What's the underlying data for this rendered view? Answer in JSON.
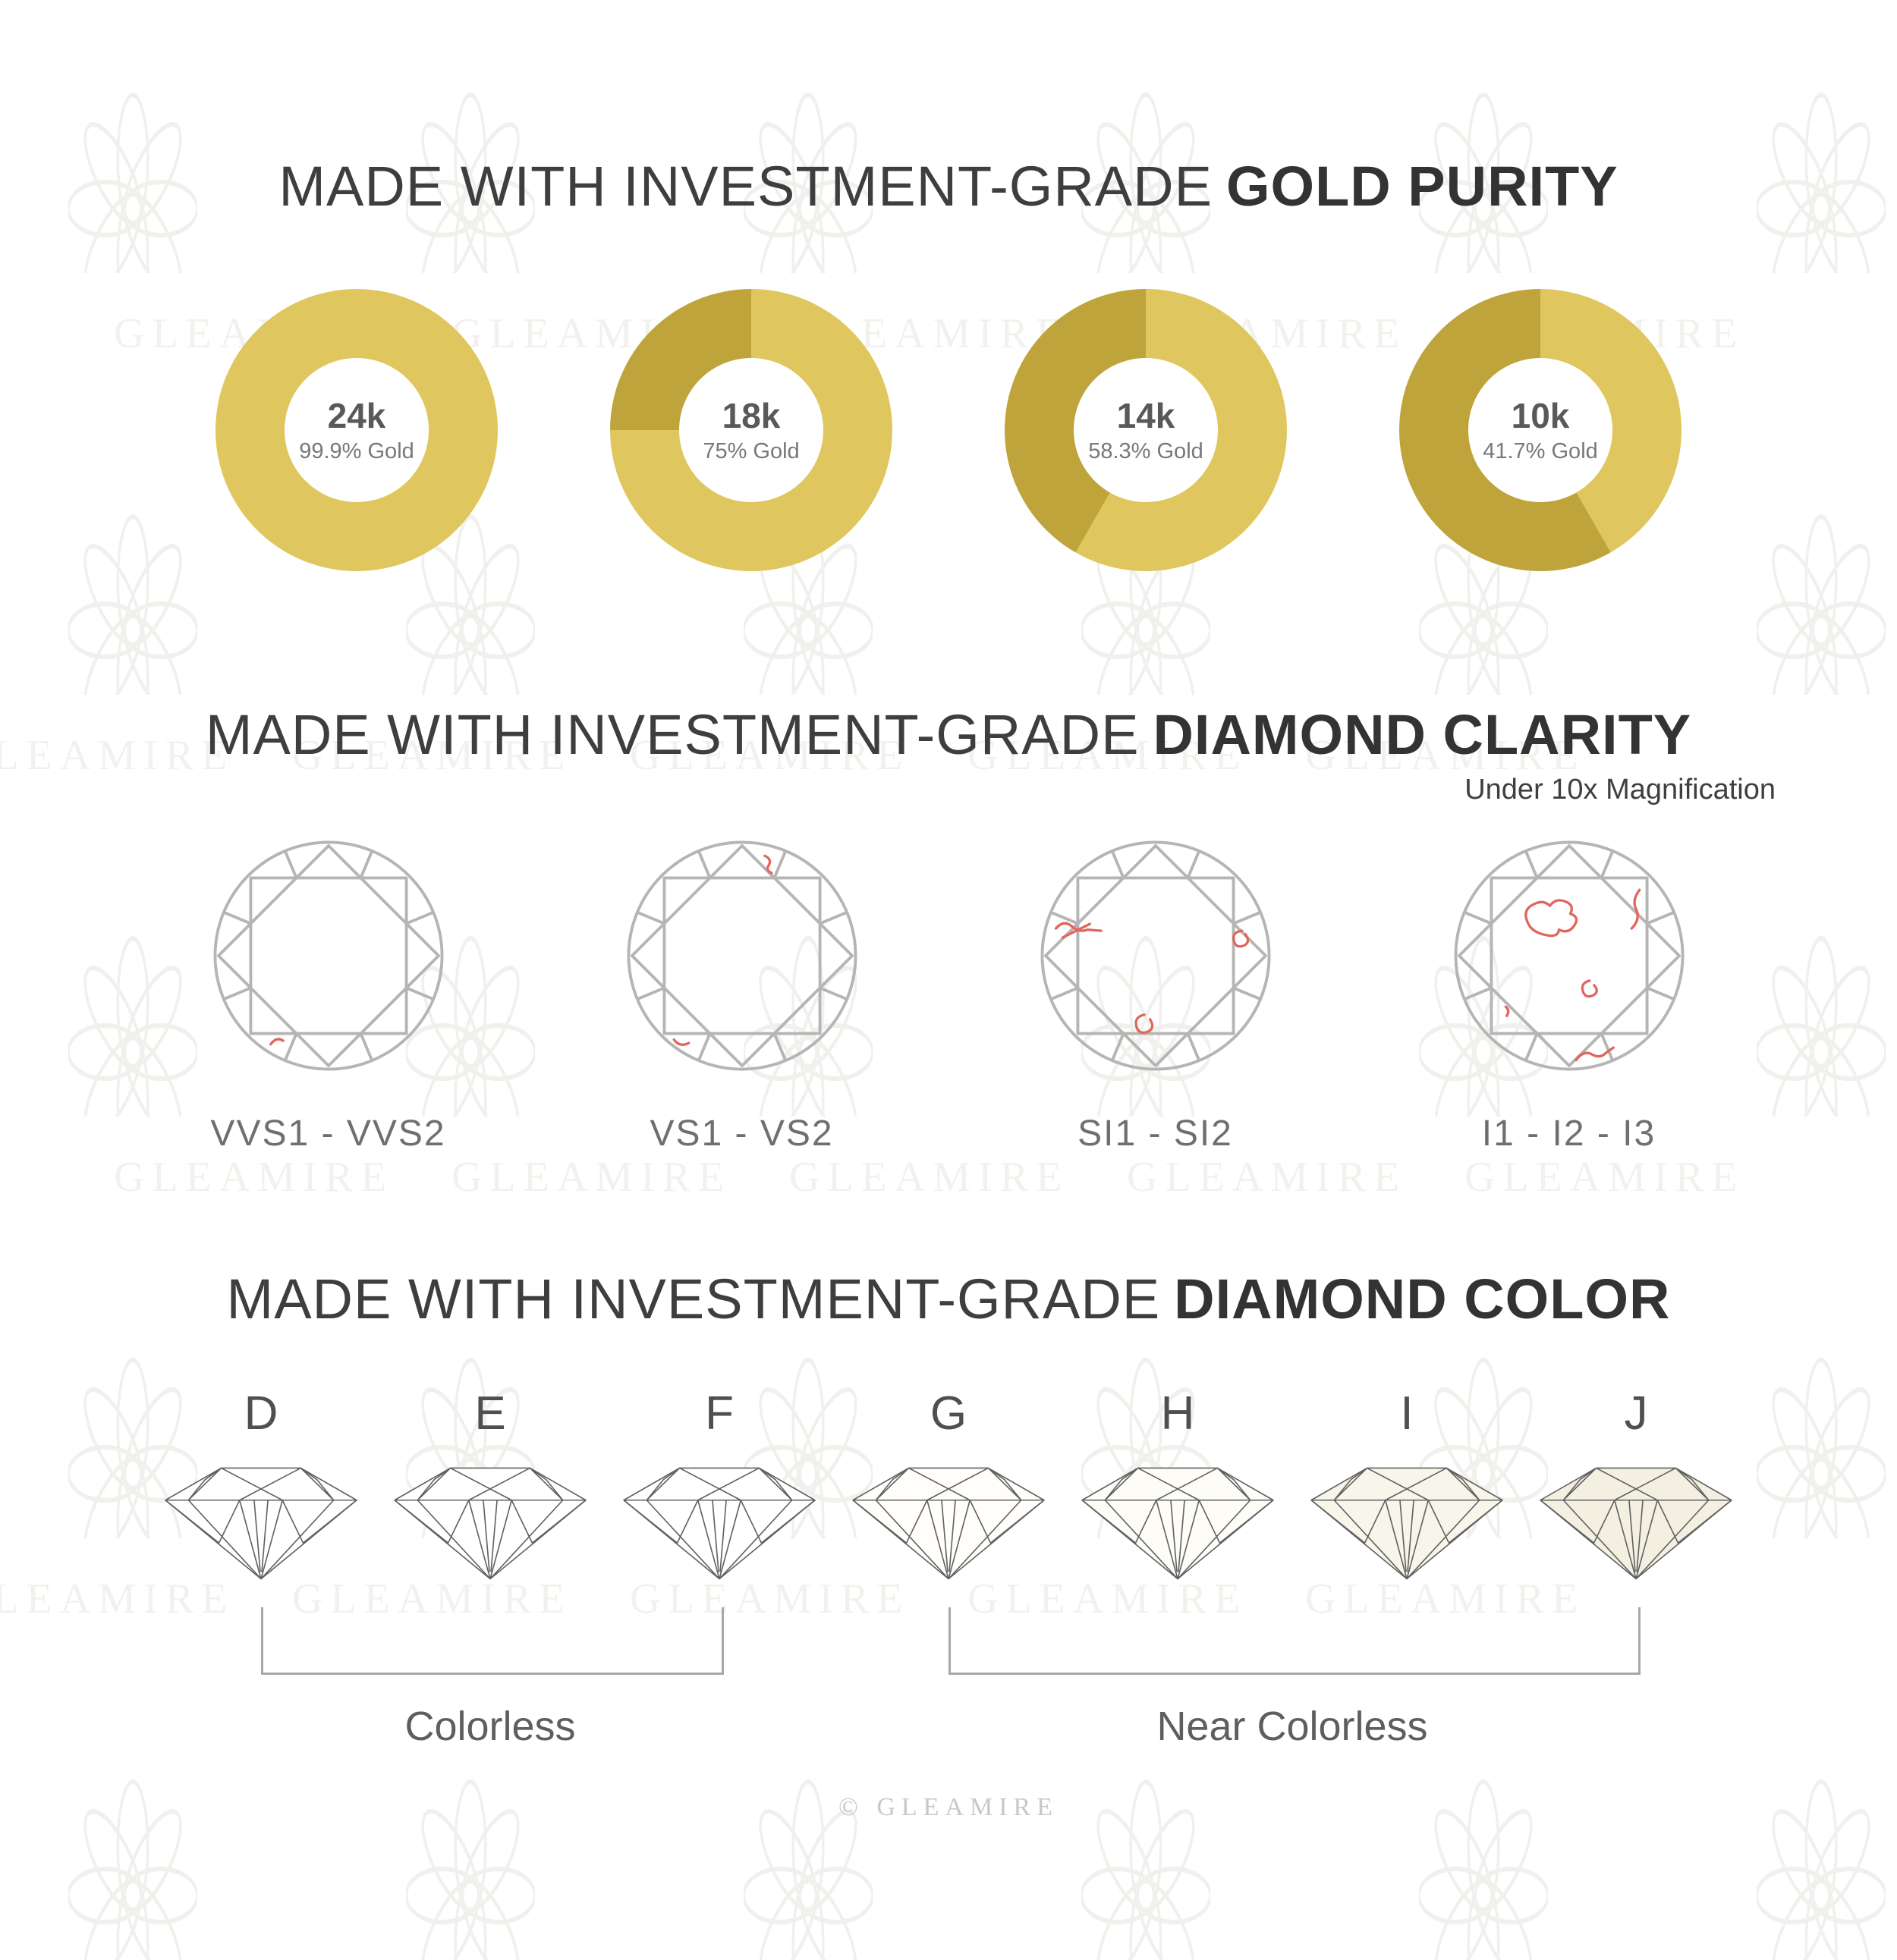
{
  "brand": {
    "watermark_text": "GLEAMIRE",
    "footer_text": "© GLEAMIRE"
  },
  "sections": {
    "gold_purity": {
      "title_regular": "MADE WITH INVESTMENT-GRADE",
      "title_bold": "GOLD PURITY",
      "colors": {
        "gold": "#e0c65e",
        "alloy": "#bfa43c"
      },
      "donuts": [
        {
          "karat": "24k",
          "purity_label": "99.9% Gold",
          "gold_pct": 99.9
        },
        {
          "karat": "18k",
          "purity_label": "75% Gold",
          "gold_pct": 75
        },
        {
          "karat": "14k",
          "purity_label": "58.3% Gold",
          "gold_pct": 58.3
        },
        {
          "karat": "10k",
          "purity_label": "41.7% Gold",
          "gold_pct": 41.7
        }
      ]
    },
    "diamond_clarity": {
      "title_regular": "MADE WITH INVESTMENT-GRADE",
      "title_bold": "DIAMOND CLARITY",
      "subtitle": "Under 10x Magnification",
      "outline_color": "#b5b5b5",
      "inclusion_color": "#e0655c",
      "grades": [
        {
          "label": "VVS1 - VVS2",
          "inclusion_count": 1
        },
        {
          "label": "VS1 - VS2",
          "inclusion_count": 2
        },
        {
          "label": "SI1 - SI2",
          "inclusion_count": 3
        },
        {
          "label": "I1 - I2 - I3",
          "inclusion_count": 5
        }
      ]
    },
    "diamond_color": {
      "title_regular": "MADE WITH INVESTMENT-GRADE",
      "title_bold": "DIAMOND COLOR",
      "grades": [
        {
          "letter": "D",
          "tint": "#ffffff"
        },
        {
          "letter": "E",
          "tint": "#ffffff"
        },
        {
          "letter": "F",
          "tint": "#ffffff"
        },
        {
          "letter": "G",
          "tint": "#fffefb"
        },
        {
          "letter": "H",
          "tint": "#fdfcf6"
        },
        {
          "letter": "I",
          "tint": "#f8f5ea"
        },
        {
          "letter": "J",
          "tint": "#f4f0e1"
        }
      ],
      "groups": [
        {
          "label": "Colorless"
        },
        {
          "label": "Near Colorless"
        }
      ]
    }
  },
  "chart_data": [
    {
      "type": "pie",
      "title": "24k gold purity donut",
      "labels": [
        "Gold",
        "Alloy"
      ],
      "values": [
        99.9,
        0.1
      ]
    },
    {
      "type": "pie",
      "title": "18k gold purity donut",
      "labels": [
        "Gold",
        "Alloy"
      ],
      "values": [
        75,
        25
      ]
    },
    {
      "type": "pie",
      "title": "14k gold purity donut",
      "labels": [
        "Gold",
        "Alloy"
      ],
      "values": [
        58.3,
        41.7
      ]
    },
    {
      "type": "pie",
      "title": "10k gold purity donut",
      "labels": [
        "Gold",
        "Alloy"
      ],
      "values": [
        41.7,
        58.3
      ]
    }
  ]
}
